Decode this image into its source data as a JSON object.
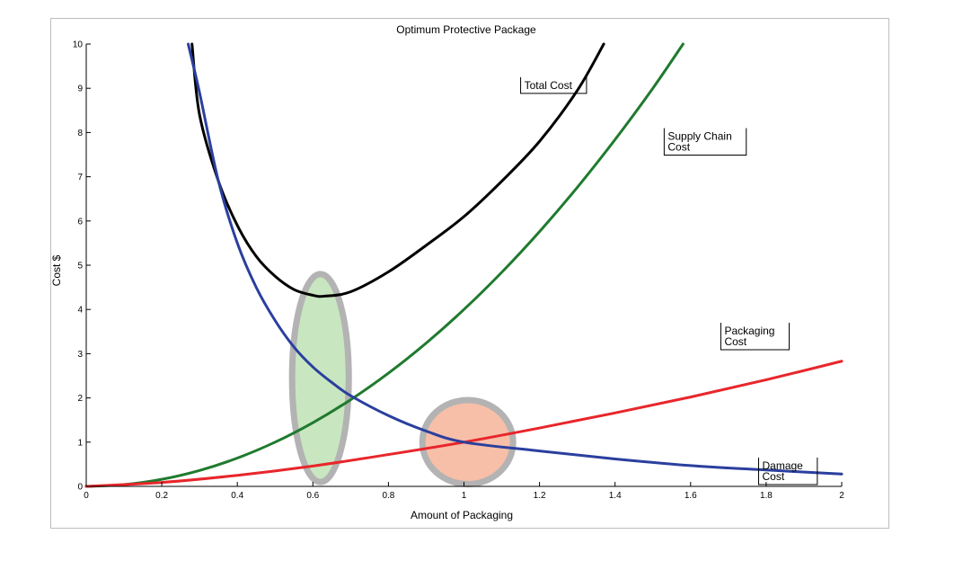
{
  "chart_data": {
    "type": "line",
    "title": "Optimum Protective Package",
    "xlabel": "Amount of Packaging",
    "ylabel": "Cost $",
    "xlim": [
      0,
      2
    ],
    "ylim": [
      0,
      10
    ],
    "xticks": [
      0,
      0.2,
      0.4,
      0.6,
      0.8,
      1,
      1.2,
      1.4,
      1.6,
      1.8,
      2
    ],
    "xtick_labels": [
      "0",
      "0.2",
      "0.4",
      "0.6",
      "0.8",
      "1",
      "1.2",
      "1.4",
      "1.6",
      "1.8",
      "2"
    ],
    "yticks": [
      0,
      1,
      2,
      3,
      4,
      5,
      6,
      7,
      8,
      9,
      10
    ],
    "ytick_labels": [
      "0",
      "1",
      "2",
      "3",
      "4",
      "5",
      "6",
      "7",
      "8",
      "9",
      "10"
    ],
    "grid": false,
    "series": [
      {
        "name": "Total Cost",
        "color": "#000000",
        "x": [
          0.28,
          0.3,
          0.35,
          0.4,
          0.45,
          0.5,
          0.55,
          0.6,
          0.63,
          0.7,
          0.8,
          0.9,
          1.0,
          1.1,
          1.2,
          1.3,
          1.37
        ],
        "y": [
          10,
          8.4,
          6.9,
          5.9,
          5.2,
          4.75,
          4.45,
          4.32,
          4.3,
          4.4,
          4.85,
          5.45,
          6.1,
          6.9,
          7.8,
          8.95,
          10
        ]
      },
      {
        "name": "Supply Chain Cost",
        "color": "#1f7a2e",
        "x": [
          0,
          0.1,
          0.2,
          0.3,
          0.4,
          0.5,
          0.6,
          0.7,
          0.8,
          0.9,
          1.0,
          1.1,
          1.2,
          1.3,
          1.4,
          1.5,
          1.58
        ],
        "y": [
          0,
          0.04,
          0.16,
          0.36,
          0.64,
          1.0,
          1.44,
          1.96,
          2.56,
          3.24,
          4.0,
          4.84,
          5.76,
          6.76,
          7.84,
          9.0,
          10
        ]
      },
      {
        "name": "Packaging Cost",
        "color": "#e8262b",
        "x": [
          0,
          0.2,
          0.4,
          0.6,
          0.8,
          1.0,
          1.2,
          1.4,
          1.6,
          1.8,
          2.0
        ],
        "y": [
          0,
          0.09,
          0.25,
          0.46,
          0.72,
          1.0,
          1.32,
          1.66,
          2.02,
          2.41,
          2.83
        ]
      },
      {
        "name": "Damage Cost",
        "color": "#2b3f9e",
        "x": [
          0.27,
          0.3,
          0.35,
          0.4,
          0.45,
          0.5,
          0.55,
          0.6,
          0.65,
          0.7,
          0.8,
          0.9,
          1.0,
          1.2,
          1.4,
          1.6,
          1.8,
          2.0
        ],
        "y": [
          10,
          8.9,
          6.9,
          5.5,
          4.5,
          3.75,
          3.15,
          2.7,
          2.35,
          2.05,
          1.6,
          1.25,
          1.0,
          0.8,
          0.62,
          0.47,
          0.37,
          0.28
        ]
      }
    ],
    "annotations": [
      {
        "text_lines": [
          "Total Cost"
        ],
        "x": 1.15,
        "y": 9.25
      },
      {
        "text_lines": [
          "Supply Chain",
          "Cost"
        ],
        "x": 1.53,
        "y": 8.1
      },
      {
        "text_lines": [
          "Packaging",
          "Cost"
        ],
        "x": 1.68,
        "y": 3.7
      },
      {
        "text_lines": [
          "Damage",
          "Cost"
        ],
        "x": 1.78,
        "y": 0.65
      }
    ],
    "highlights": [
      {
        "shape": "ellipse",
        "cx": 0.62,
        "cy": 2.45,
        "rx": 0.075,
        "ry": 2.35,
        "fill": "#c8e6c0"
      },
      {
        "shape": "ellipse",
        "cx": 1.01,
        "cy": 1.0,
        "rx": 0.12,
        "ry": 0.95,
        "fill": "#f7bfa8"
      }
    ]
  }
}
